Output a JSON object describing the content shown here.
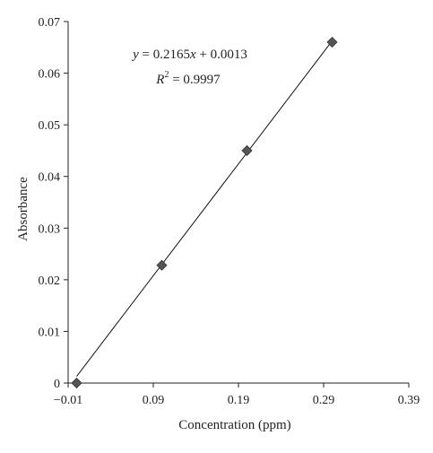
{
  "chart_data": {
    "type": "scatter",
    "xlabel": "Concentration (ppm)",
    "ylabel": "Absorbance",
    "xlim": [
      -0.01,
      0.39
    ],
    "ylim": [
      0,
      0.07
    ],
    "x_ticks": [
      -0.01,
      0.09,
      0.19,
      0.29,
      0.39
    ],
    "x_tick_labels": [
      "−0.01",
      "0.09",
      "0.19",
      "0.29",
      "0.39"
    ],
    "y_ticks": [
      0,
      0.01,
      0.02,
      0.03,
      0.04,
      0.05,
      0.06,
      0.07
    ],
    "y_tick_labels": [
      "0",
      "0.01",
      "0.02",
      "0.03",
      "0.04",
      "0.05",
      "0.06",
      "0.07"
    ],
    "grid": false,
    "series": [
      {
        "x": [
          0,
          0.1,
          0.2,
          0.3
        ],
        "y": [
          0,
          0.0228,
          0.045,
          0.066
        ],
        "marker": "diamond"
      }
    ],
    "trendline": {
      "slope": 0.2165,
      "intercept": 0.0013,
      "x_range": [
        0,
        0.3
      ]
    },
    "annotations": {
      "equation": "y = 0.2165x + 0.0013",
      "r_squared": "R2 = 0.9997",
      "equation_parts": {
        "y": "y",
        "eq_mid": " = 0.2165",
        "x": "x",
        "eq_end": " + 0.0013"
      },
      "r2_parts": {
        "r": "R",
        "sup": "2",
        "value": " = 0.9997"
      }
    },
    "colors": {
      "marker": "#555555",
      "line": "#111111",
      "axis": "#222222"
    }
  }
}
